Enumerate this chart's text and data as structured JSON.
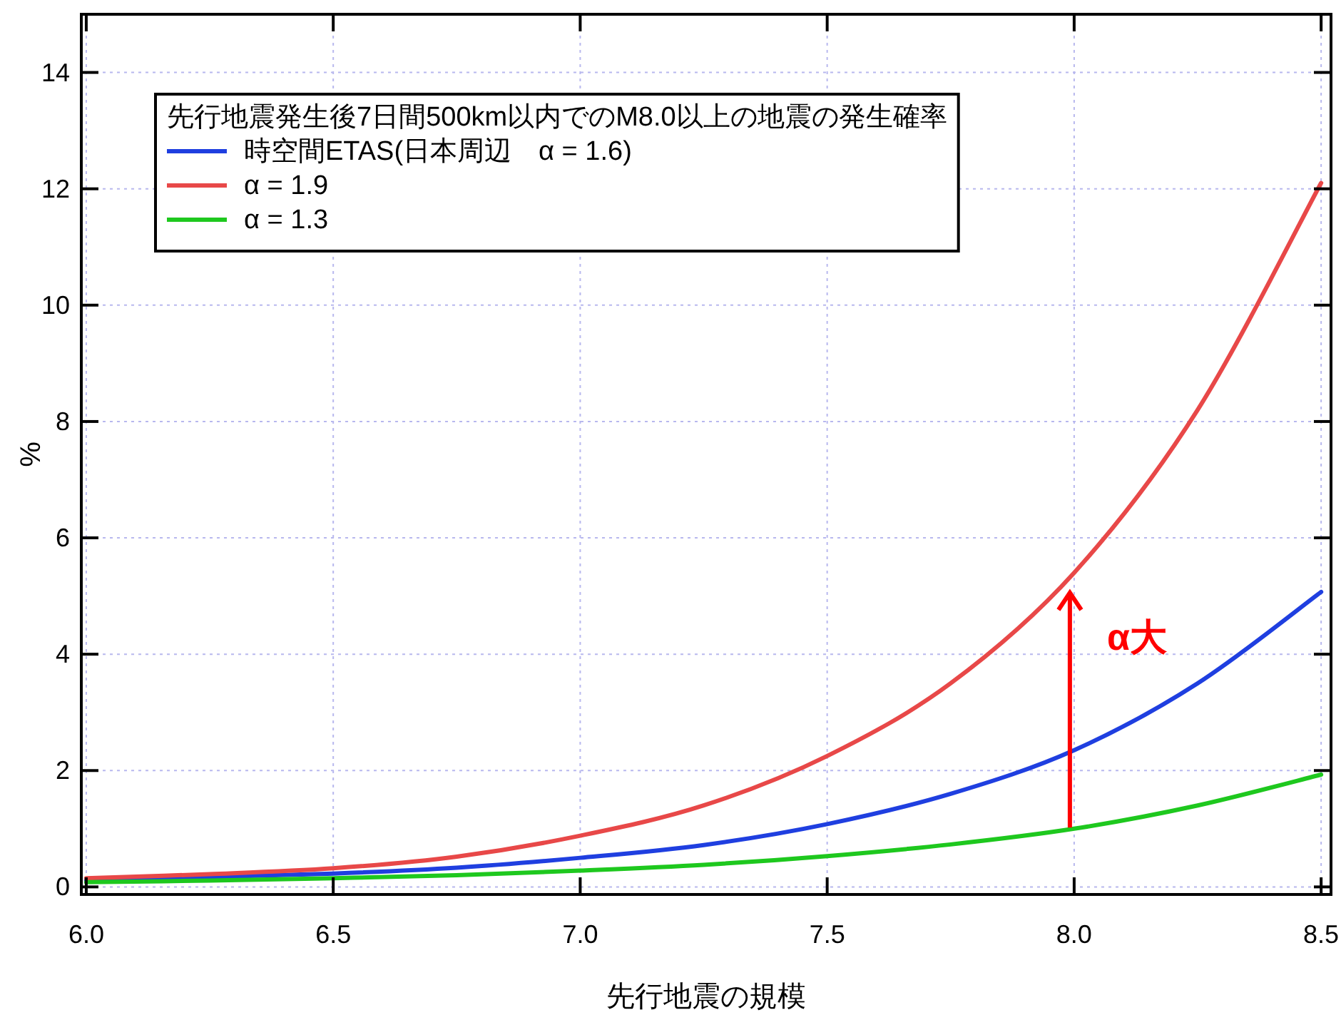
{
  "chart_data": {
    "type": "line",
    "xlabel": "先行地震の規模",
    "ylabel": "%",
    "legend_title": "先行地震発生後7日間500km以内でのM8.0以上の地震の発生確率",
    "x": [
      6.0,
      6.25,
      6.5,
      6.75,
      7.0,
      7.25,
      7.5,
      7.75,
      8.0,
      8.25,
      8.5
    ],
    "series": [
      {
        "name": "時空間ETAS(日本周辺　α = 1.6)",
        "color": "#1f3fe0",
        "values": [
          0.12,
          0.17,
          0.23,
          0.33,
          0.5,
          0.72,
          1.08,
          1.6,
          2.35,
          3.5,
          5.07
        ]
      },
      {
        "name": "α = 1.9",
        "color": "#e84848",
        "values": [
          0.15,
          0.22,
          0.32,
          0.52,
          0.88,
          1.4,
          2.25,
          3.5,
          5.4,
          8.2,
          12.1
        ]
      },
      {
        "name": "α = 1.3",
        "color": "#1ec81e",
        "values": [
          0.08,
          0.11,
          0.15,
          0.2,
          0.28,
          0.38,
          0.53,
          0.73,
          1.0,
          1.4,
          1.93
        ]
      }
    ],
    "xlim": [
      5.99,
      8.52
    ],
    "ylim": [
      -0.13,
      15
    ],
    "xticks": [
      {
        "value": 6,
        "label": "6.0"
      },
      {
        "value": 6.5,
        "label": "6.5"
      },
      {
        "value": 7,
        "label": "7.0"
      },
      {
        "value": 7.5,
        "label": "7.5"
      },
      {
        "value": 8,
        "label": "8.0"
      },
      {
        "value": 8.5,
        "label": "8.5"
      }
    ],
    "yticks": [
      0,
      2,
      4,
      6,
      8,
      10,
      12,
      14
    ],
    "annotations": [
      {
        "text": "α大",
        "x": 8.0,
        "y": 5.4
      }
    ],
    "grid": true,
    "legend": "top left",
    "marker": "none",
    "line_style": "solid"
  }
}
